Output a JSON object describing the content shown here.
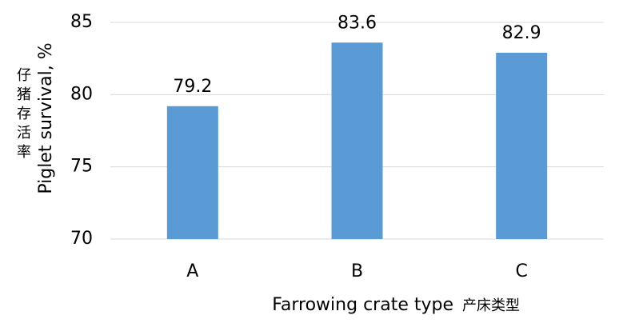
{
  "chart_data": {
    "type": "bar",
    "categories": [
      "A",
      "B",
      "C"
    ],
    "values": [
      79.2,
      83.6,
      82.9
    ],
    "color": "#5b9bd5",
    "ylim": [
      70,
      85
    ],
    "yticks": [
      70,
      75,
      80,
      85
    ],
    "grid": true,
    "xlabel": "Farrowing crate type",
    "xlabel_cn": "产床类型",
    "ylabel": "Piglet survival, %",
    "ylabel_cn": "仔猪存活率"
  }
}
